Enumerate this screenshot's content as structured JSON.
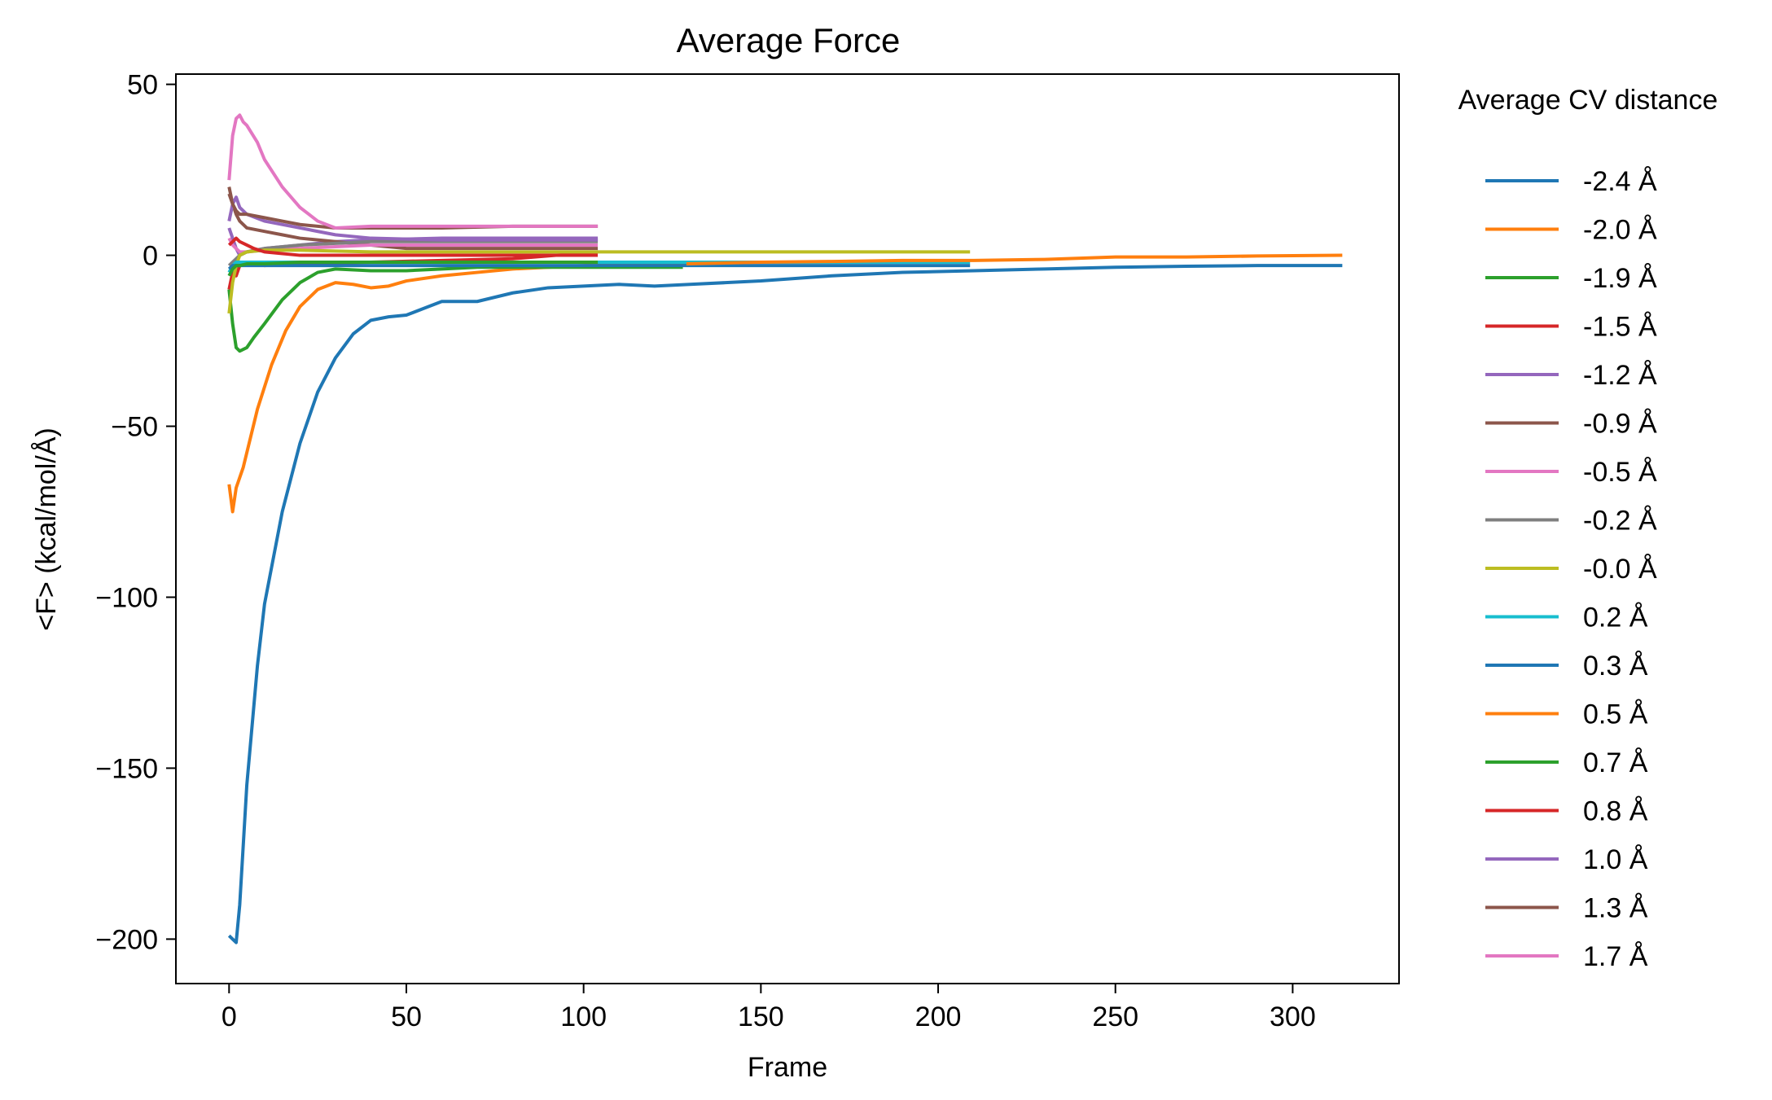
{
  "chart_data": {
    "type": "line",
    "title": "Average Force",
    "xlabel": "Frame",
    "ylabel": "<F> (kcal/mol/Å)",
    "xlim": [
      -15,
      330
    ],
    "ylim": [
      -213,
      53
    ],
    "xticks": [
      0,
      50,
      100,
      150,
      200,
      250,
      300
    ],
    "yticks": [
      50,
      0,
      -50,
      -100,
      -150,
      -200
    ],
    "xtick_labels": [
      "0",
      "50",
      "100",
      "150",
      "200",
      "250",
      "300"
    ],
    "ytick_labels": [
      "50",
      "0",
      "−50",
      "−100",
      "−150",
      "−200"
    ],
    "grid": false,
    "legend_title": "Average CV distance",
    "legend_position": "outside-right",
    "series": [
      {
        "name": "-2.4 Å",
        "color": "#1f77b4",
        "x": [
          0,
          1,
          2,
          3,
          5,
          8,
          10,
          15,
          20,
          25,
          30,
          35,
          40,
          45,
          50,
          55,
          60,
          70,
          80,
          90,
          100,
          110,
          120,
          130,
          140,
          150,
          170,
          190,
          210,
          230,
          250,
          270,
          290,
          314
        ],
        "y": [
          -199,
          -200,
          -201,
          -190,
          -155,
          -120,
          -102,
          -75,
          -55,
          -40,
          -30,
          -23,
          -19,
          -18,
          -17.5,
          -15.5,
          -13.5,
          -13.5,
          -11,
          -9.5,
          -9,
          -8.5,
          -9,
          -8.5,
          -8,
          -7.5,
          -6,
          -5,
          -4.5,
          -4,
          -3.5,
          -3.2,
          -3,
          -3
        ]
      },
      {
        "name": "-2.0 Å",
        "color": "#ff7f0e",
        "x": [
          0,
          1,
          2,
          4,
          8,
          12,
          16,
          20,
          25,
          30,
          35,
          40,
          45,
          50,
          60,
          70,
          80,
          90,
          100,
          110,
          120,
          129
        ],
        "y": [
          -67,
          -75,
          -68,
          -62,
          -45,
          -32,
          -22,
          -15,
          -10,
          -8,
          -8.5,
          -9.5,
          -9,
          -7.5,
          -6,
          -5,
          -4,
          -3.5,
          -3,
          -2.5,
          -2.5,
          -2.5
        ]
      },
      {
        "name": "-1.9 Å",
        "color": "#2ca02c",
        "x": [
          0,
          1,
          2,
          3,
          5,
          7,
          10,
          15,
          20,
          25,
          30,
          40,
          50,
          60,
          70,
          80,
          90,
          100,
          110,
          120,
          128
        ],
        "y": [
          -10,
          -20,
          -27,
          -28,
          -27,
          -24,
          -20,
          -13,
          -8,
          -5,
          -4,
          -4.5,
          -4.5,
          -4,
          -3.5,
          -3.5,
          -3.5,
          -3.5,
          -3.5,
          -3.5,
          -3.5
        ]
      },
      {
        "name": "-1.5 Å",
        "color": "#d62728",
        "x": [
          0,
          1,
          2,
          3,
          5,
          8,
          10,
          20,
          40,
          60,
          80,
          104
        ],
        "y": [
          -10,
          -5,
          -6,
          -3,
          -2,
          -2,
          -3,
          -2.5,
          -2,
          -1.5,
          -1,
          1
        ]
      },
      {
        "name": "-1.2 Å",
        "color": "#9467bd",
        "x": [
          0,
          1,
          2,
          3,
          5,
          10,
          20,
          30,
          40,
          60,
          80,
          104
        ],
        "y": [
          8,
          5,
          2,
          0,
          1,
          2,
          3,
          4,
          4.5,
          5,
          5,
          5
        ]
      },
      {
        "name": "-0.9 Å",
        "color": "#8c564b",
        "x": [
          0,
          1,
          2,
          3,
          5,
          10,
          15,
          20,
          30,
          40,
          50,
          60,
          70,
          80,
          90,
          104
        ],
        "y": [
          20,
          15,
          12,
          10,
          8,
          7,
          6,
          5,
          4,
          3,
          2,
          2,
          2,
          2,
          2,
          2
        ]
      },
      {
        "name": "-0.5 Å",
        "color": "#e377c2",
        "x": [
          0,
          1,
          2,
          3,
          5,
          10,
          20,
          30,
          40,
          60,
          80,
          104
        ],
        "y": [
          5,
          3,
          2,
          1,
          1,
          1.5,
          2,
          2.5,
          3,
          3,
          3,
          3
        ]
      },
      {
        "name": "-0.2 Å",
        "color": "#7f7f7f",
        "x": [
          0,
          1,
          2,
          3,
          5,
          10,
          20,
          30,
          40,
          60,
          80,
          104
        ],
        "y": [
          -3,
          -2,
          -1,
          0,
          1,
          2,
          3,
          3.5,
          4,
          4,
          4,
          4
        ]
      },
      {
        "name": "-0.0 Å",
        "color": "#bcbd22",
        "x": [
          0,
          1,
          2,
          3,
          5,
          10,
          20,
          40,
          60,
          100,
          150,
          209
        ],
        "y": [
          -17,
          -8,
          -3,
          0,
          1,
          1.5,
          1.5,
          1,
          1,
          1,
          1,
          1
        ]
      },
      {
        "name": "0.2 Å",
        "color": "#17becf",
        "x": [
          0,
          1,
          2,
          3,
          5,
          10,
          20,
          40,
          80,
          120,
          160,
          209
        ],
        "y": [
          -5,
          -3,
          -2,
          -2,
          -2,
          -2,
          -2,
          -2,
          -2,
          -2,
          -2,
          -2
        ]
      },
      {
        "name": "0.3 Å",
        "color": "#1f77b4",
        "x": [
          0,
          1,
          2,
          3,
          5,
          10,
          20,
          40,
          80,
          120,
          160,
          209
        ],
        "y": [
          -4,
          -3,
          -3,
          -3,
          -3,
          -3,
          -3,
          -3,
          -3,
          -3,
          -3,
          -3
        ]
      },
      {
        "name": "0.5 Å",
        "color": "#ff7f0e",
        "x": [
          129,
          150,
          170,
          190,
          210,
          230,
          250,
          270,
          290,
          314
        ],
        "y": [
          -2.5,
          -2,
          -1.8,
          -1.5,
          -1.5,
          -1.2,
          -0.5,
          -0.5,
          -0.2,
          0
        ]
      },
      {
        "name": "0.7 Å",
        "color": "#2ca02c",
        "x": [
          0,
          1,
          2,
          3,
          5,
          10,
          20,
          40,
          60,
          80,
          104
        ],
        "y": [
          -6,
          -4,
          -3,
          -3,
          -2.5,
          -2.5,
          -2,
          -2,
          -2,
          -2,
          -2
        ]
      },
      {
        "name": "0.8 Å",
        "color": "#d62728",
        "x": [
          0,
          1,
          2,
          3,
          5,
          7,
          10,
          20,
          40,
          60,
          80,
          104
        ],
        "y": [
          3,
          4,
          5,
          4,
          3,
          2,
          1,
          0,
          0,
          0,
          0,
          0
        ]
      },
      {
        "name": "1.0 Å",
        "color": "#9467bd",
        "x": [
          0,
          1,
          2,
          3,
          5,
          10,
          20,
          30,
          40,
          60,
          80,
          104
        ],
        "y": [
          10,
          15,
          17,
          14,
          12,
          10,
          8,
          6,
          5,
          4.5,
          4.5,
          4.5
        ]
      },
      {
        "name": "1.3 Å",
        "color": "#8c564b",
        "x": [
          0,
          1,
          2,
          3,
          5,
          10,
          15,
          20,
          30,
          40,
          60,
          80,
          104
        ],
        "y": [
          18,
          15,
          13,
          12,
          12,
          11,
          10,
          9,
          8,
          8,
          8,
          8.5,
          8.5
        ]
      },
      {
        "name": "1.7 Å",
        "color": "#e377c2",
        "x": [
          0,
          1,
          2,
          3,
          4,
          5,
          8,
          10,
          15,
          20,
          25,
          30,
          40,
          50,
          60,
          70,
          80,
          90,
          104
        ],
        "y": [
          22,
          35,
          40,
          41,
          39,
          38,
          33,
          28,
          20,
          14,
          10,
          8,
          8.5,
          8.5,
          8.5,
          8.5,
          8.5,
          8.5,
          8.5
        ]
      }
    ]
  }
}
